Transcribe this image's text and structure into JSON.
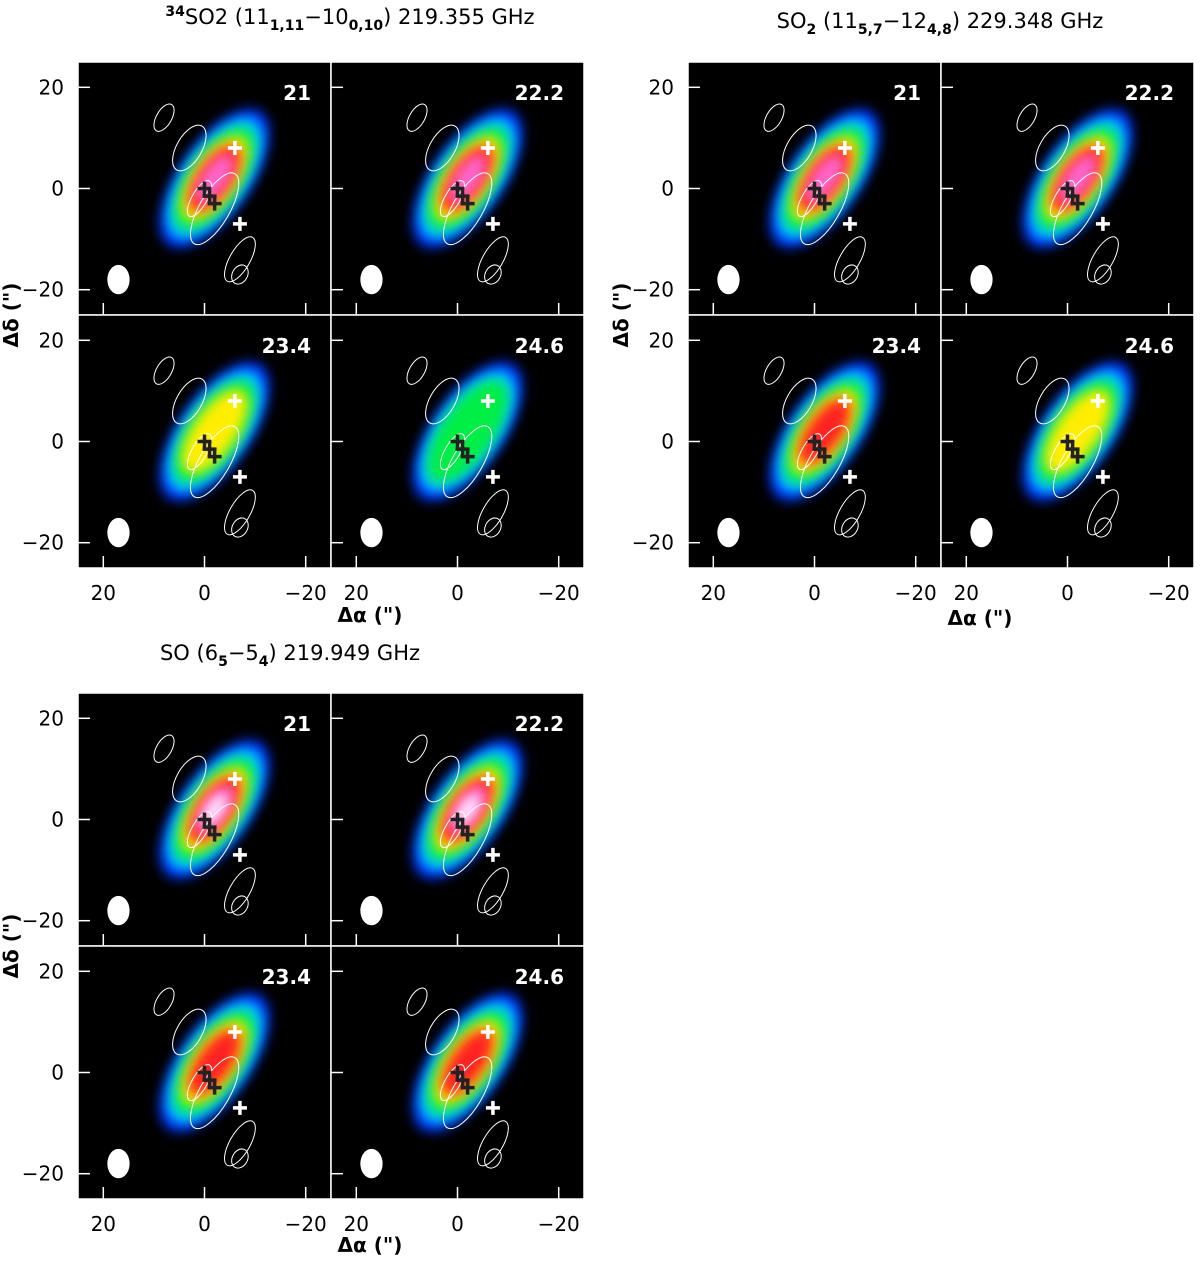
{
  "figures": [
    {
      "title": [
        "34",
        "SO2 (11",
        "1,11",
        "−10",
        "0,10",
        ") 219.355 GHz"
      ],
      "channels": [
        "21",
        "22.2",
        "23.4",
        "24.6"
      ],
      "xlabel": "Δα (\")",
      "ylabel": "Δδ (\")",
      "xlim": [
        25,
        -25
      ],
      "ylim": [
        -25,
        25
      ],
      "xticks": [
        20,
        0,
        {
          "value": -20,
          "label": "−20"
        }
      ],
      "yticks": [
        20,
        0,
        {
          "value": -20,
          "label": "−20"
        }
      ]
    },
    {
      "title": [
        "SO",
        "2",
        " (11",
        "5,7",
        "−12",
        "4,8",
        ") 229.348 GHz"
      ],
      "channels": [
        "21",
        "22.2",
        "23.4",
        "24.6"
      ],
      "xlabel": "Δα (\")",
      "ylabel": "Δδ (\")",
      "xlim": [
        25,
        -25
      ],
      "ylim": [
        -25,
        25
      ],
      "xticks": [
        20,
        0,
        {
          "value": -20,
          "label": "−20"
        }
      ],
      "yticks": [
        20,
        0,
        {
          "value": -20,
          "label": "−20"
        }
      ]
    },
    {
      "title": [
        "SO (6",
        "5",
        "−5",
        "4",
        ") 219.949 GHz"
      ],
      "channels": [
        "21",
        "22.2",
        "23.4",
        "24.6"
      ],
      "xlabel": "Δα (\")",
      "ylabel": "Δδ (\")",
      "xlim": [
        25,
        -25
      ],
      "ylim": [
        -25,
        25
      ],
      "xticks": [
        20,
        0,
        {
          "value": -20,
          "label": "−20"
        }
      ],
      "yticks": [
        20,
        0,
        {
          "value": -20,
          "label": "−20"
        }
      ]
    }
  ]
}
